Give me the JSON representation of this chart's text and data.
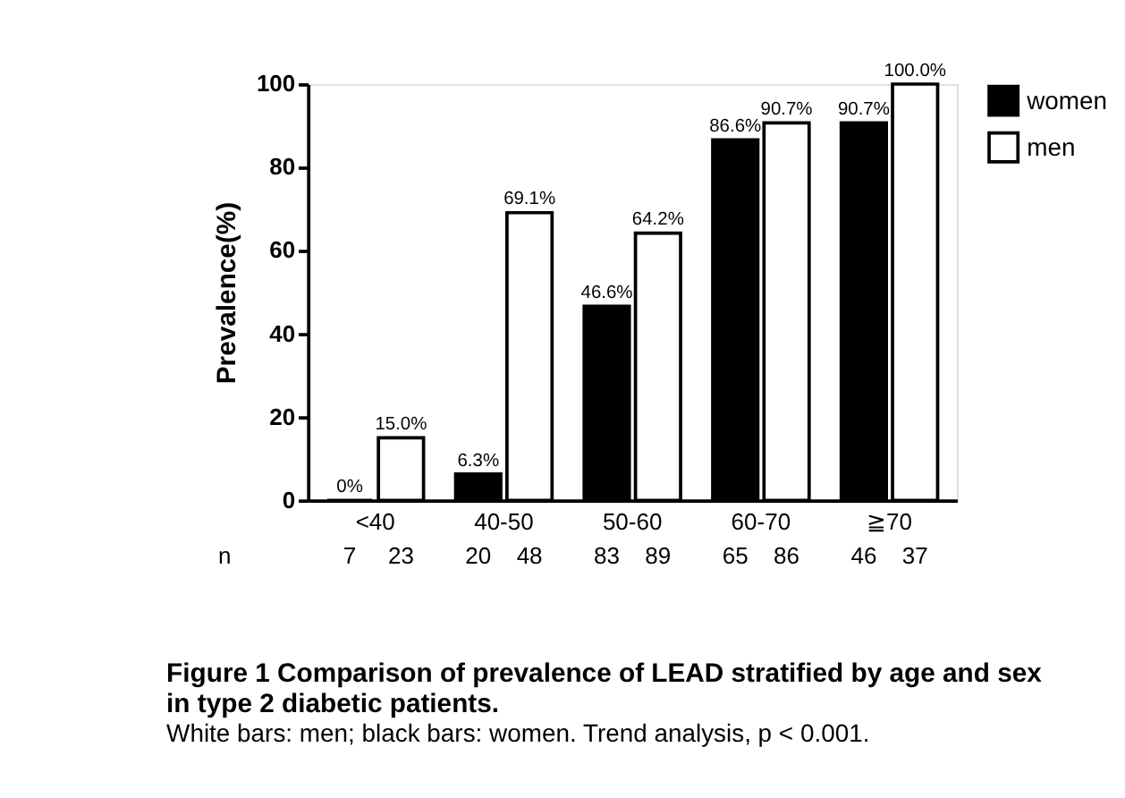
{
  "chart_data": {
    "type": "bar",
    "title": "Figure 1 Comparison of prevalence of LEAD stratified by age and sex in type 2 diabetic patients.",
    "ylabel": "Prevalence(%)",
    "categories": [
      "<40",
      "40-50",
      "50-60",
      "60-70",
      "≧70"
    ],
    "series": [
      {
        "name": "women",
        "color": "#000000",
        "values": [
          0,
          6.3,
          46.6,
          86.6,
          90.7
        ],
        "value_labels": [
          "0%",
          "6.3%",
          "46.6%",
          "86.6%",
          "90.7%"
        ]
      },
      {
        "name": "men",
        "color": "#ffffff",
        "values": [
          15.0,
          69.1,
          64.2,
          90.7,
          100.0
        ],
        "value_labels": [
          "15.0%",
          "69.1%",
          "64.2%",
          "90.7%",
          "100.0%"
        ]
      }
    ],
    "ylim": [
      0,
      100
    ],
    "yticks": [
      0,
      20,
      40,
      60,
      80,
      100
    ],
    "grid": false,
    "legend": "top right",
    "annotations": [
      "n",
      "7",
      "23",
      "20",
      "48",
      "83",
      "89",
      "65",
      "86",
      "46",
      "37",
      "White bars: men; black bars: women. Trend analysis, p < 0.001."
    ]
  }
}
